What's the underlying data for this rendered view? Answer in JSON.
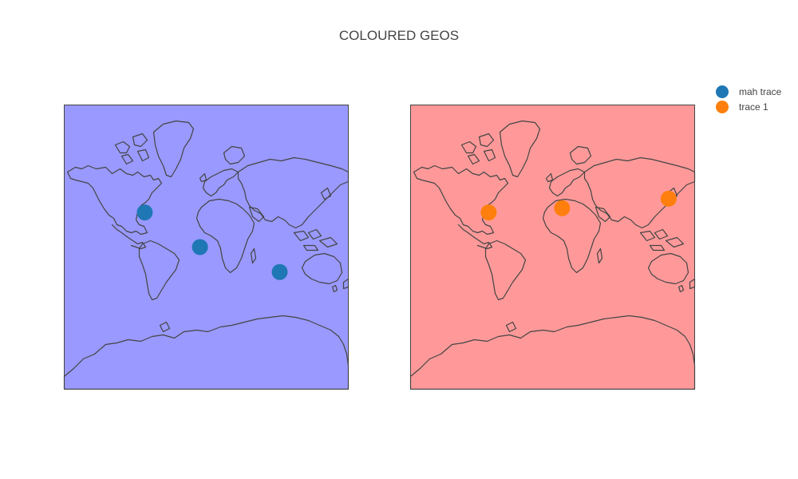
{
  "title": "COLOURED GEOS",
  "chart_data": {
    "type": "scattergeo",
    "projection": "mercator",
    "maps": [
      {
        "name": "geo",
        "land_color": "#9999ff",
        "coastline_color": "#444444",
        "series": [
          {
            "name": "mah trace",
            "color": "#1f77b4",
            "points": [
              {
                "lon": -78,
                "lat": 40
              },
              {
                "lon": -8,
                "lat": 0
              },
              {
                "lon": 93,
                "lat": -30
              }
            ]
          }
        ]
      },
      {
        "name": "geo2",
        "land_color": "#ff9999",
        "coastline_color": "#444444",
        "series": [
          {
            "name": "trace 1",
            "color": "#ff7f0e",
            "points": [
              {
                "lon": -81,
                "lat": 40
              },
              {
                "lon": 12,
                "lat": 44
              },
              {
                "lon": 147,
                "lat": 52
              }
            ]
          }
        ]
      }
    ]
  },
  "legend": {
    "items": [
      {
        "label": "mah trace",
        "color": "#1f77b4"
      },
      {
        "label": "trace 1",
        "color": "#ff7f0e"
      }
    ],
    "placement": "top-right"
  }
}
